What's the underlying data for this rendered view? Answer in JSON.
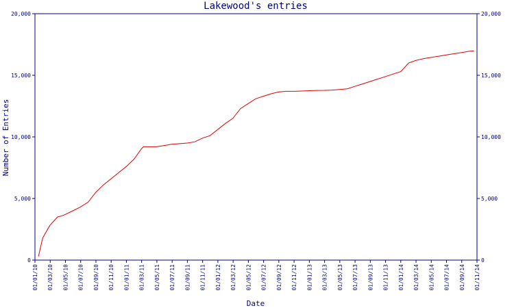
{
  "chart_data": {
    "type": "line",
    "title": "Lakewood's entries",
    "xlabel": "Date",
    "ylabel": "Number of Entries",
    "ylim": [
      0,
      20000
    ],
    "y_ticks": [
      0,
      5000,
      10000,
      15000,
      20000
    ],
    "y_tick_labels": [
      "0",
      "5,000",
      "10,000",
      "15,000",
      "20,000"
    ],
    "x_range": [
      "2010-01-01",
      "2014-11-01"
    ],
    "x_tick_labels": [
      "01/01/10",
      "01/03/10",
      "01/05/10",
      "01/07/10",
      "01/09/10",
      "01/11/10",
      "01/01/11",
      "01/03/11",
      "01/05/11",
      "01/07/11",
      "01/09/11",
      "01/11/11",
      "01/01/12",
      "01/03/12",
      "01/05/12",
      "01/07/12",
      "01/09/12",
      "01/11/12",
      "01/01/13",
      "01/03/13",
      "01/05/13",
      "01/07/13",
      "01/09/13",
      "01/11/13",
      "01/01/14",
      "01/03/14",
      "01/05/14",
      "01/07/14",
      "01/09/14",
      "01/11/14"
    ],
    "grid": false,
    "colors": {
      "axis": "#000080",
      "series": "#e00000"
    },
    "series": [
      {
        "x": [
          "2010-01-15",
          "2010-02-01",
          "2010-03-01",
          "2010-04-01",
          "2010-04-20",
          "2010-05-01",
          "2010-06-01",
          "2010-07-01",
          "2010-08-01",
          "2010-09-01",
          "2010-10-01",
          "2010-11-01",
          "2010-12-01",
          "2011-01-01",
          "2011-02-01",
          "2011-03-01",
          "2011-03-10",
          "2011-04-01",
          "2011-05-01",
          "2011-06-01",
          "2011-07-01",
          "2011-08-01",
          "2011-09-01",
          "2011-10-01",
          "2011-11-01",
          "2011-12-01",
          "2012-01-01",
          "2012-02-01",
          "2012-03-01",
          "2012-04-01",
          "2012-05-01",
          "2012-06-01",
          "2012-07-01",
          "2012-08-01",
          "2012-09-01",
          "2012-10-01",
          "2012-11-01",
          "2012-12-01",
          "2013-01-01",
          "2013-02-01",
          "2013-03-01",
          "2013-04-01",
          "2013-05-01",
          "2013-06-01",
          "2013-07-01",
          "2013-08-01",
          "2013-09-01",
          "2013-10-01",
          "2013-11-01",
          "2013-12-01",
          "2014-01-01",
          "2014-02-01",
          "2014-03-01",
          "2014-04-01",
          "2014-05-01",
          "2014-06-01",
          "2014-07-01",
          "2014-08-01",
          "2014-09-01",
          "2014-10-01",
          "2014-10-20"
        ],
        "y": [
          300,
          1800,
          2800,
          3500,
          3600,
          3700,
          4000,
          4300,
          4700,
          5500,
          6100,
          6600,
          7100,
          7600,
          8200,
          9000,
          9200,
          9200,
          9200,
          9300,
          9400,
          9450,
          9500,
          9600,
          9900,
          10100,
          10600,
          11100,
          11500,
          12300,
          12700,
          13100,
          13300,
          13500,
          13650,
          13700,
          13700,
          13720,
          13750,
          13770,
          13780,
          13800,
          13850,
          13900,
          14100,
          14300,
          14500,
          14700,
          14900,
          15100,
          15300,
          16000,
          16200,
          16350,
          16450,
          16550,
          16650,
          16750,
          16850,
          16950,
          16980
        ]
      }
    ]
  }
}
